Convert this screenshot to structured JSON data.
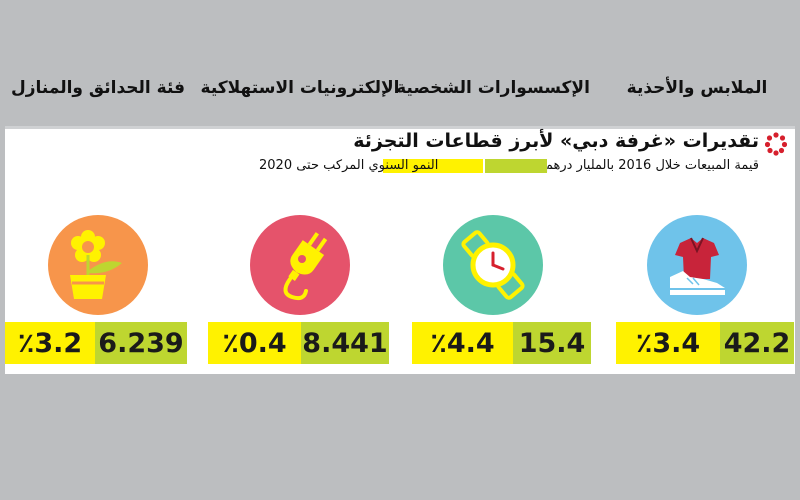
{
  "header": {
    "title": "تقديرات «غرفة دبي» لأبرز قطاعات التجزئة",
    "subtitle": "قيمة المبيعات خلال 2016 بالمليار درهم",
    "growth_label": "النمو السنوي المركب حتى 2020"
  },
  "colors": {
    "value": "#bed630",
    "growth": "#fff200",
    "apparel_icon_bg": "#6fc3ea",
    "accessories_icon_bg": "#5cc7a8",
    "electronics_icon_bg": "#e5536b",
    "home_garden_icon_bg": "#f7954b"
  },
  "chart_data": {
    "type": "table",
    "title": "تقديرات «غرفة دبي» لأبرز قطاعات التجزئة",
    "columns": [
      "قيمة المبيعات خلال 2016 بالمليار درهم",
      "النمو السنوي المركب حتى 2020"
    ],
    "categories": [
      "الملابس والأحذية",
      "الإكسسوارات الشخصية",
      "الإلكترونيات الاستهلاكية",
      "فئة الحدائق والمنازل"
    ],
    "series": [
      {
        "name": "قيمة المبيعات خلال 2016 بالمليار درهم",
        "values": [
          42.2,
          15.4,
          8.441,
          6.239
        ]
      },
      {
        "name": "النمو السنوي المركب حتى 2020",
        "values": [
          3.4,
          4.4,
          0.4,
          3.2
        ]
      }
    ],
    "rows": [
      {
        "label": "الملابس والأحذية",
        "icon": "clothes-shoe-icon",
        "value": "42.2",
        "growth": "٪3.4"
      },
      {
        "label": "الإكسسوارات الشخصية",
        "icon": "wristwatch-icon",
        "value": "15.4",
        "growth": "٪4.4"
      },
      {
        "label": "الإلكترونيات الاستهلاكية",
        "icon": "power-plug-icon",
        "value": "8.441",
        "growth": "٪0.4"
      },
      {
        "label": "فئة الحدائق والمنازل",
        "icon": "flower-pot-icon",
        "value": "6.239",
        "growth": "٪3.2"
      }
    ]
  }
}
